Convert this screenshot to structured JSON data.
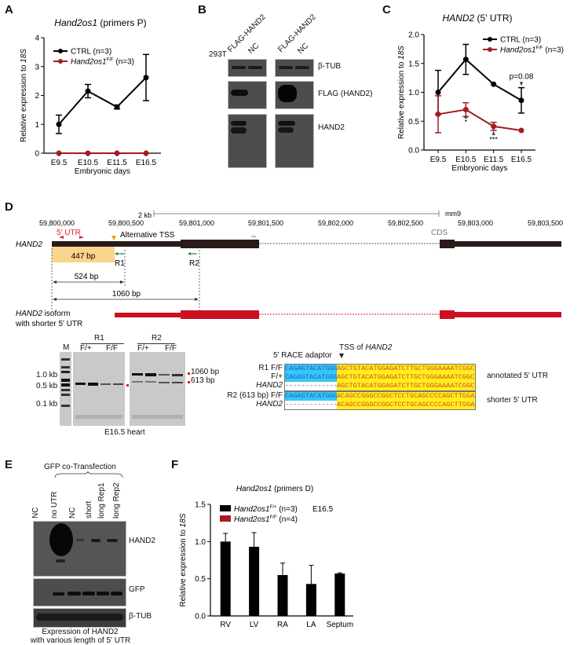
{
  "panels": {
    "A": {
      "label": "A"
    },
    "B": {
      "label": "B"
    },
    "C": {
      "label": "C"
    },
    "D": {
      "label": "D"
    },
    "E": {
      "label": "E"
    },
    "F": {
      "label": "F"
    }
  },
  "chart_data": [
    {
      "id": "A",
      "type": "line",
      "title_italic": "Hand2os1",
      "title_rest": " (primers P)",
      "xlabel": "Embryonic days",
      "ylabel_prefix": "Relative expression to ",
      "ylabel_italic": "18S",
      "categories": [
        "E9.5",
        "E10.5",
        "E11.5",
        "E16.5"
      ],
      "ylim": [
        0,
        4
      ],
      "yticks": [
        0,
        1,
        2,
        3,
        4
      ],
      "legend_position": "top-left",
      "series": [
        {
          "name": "CTRL (n=3)",
          "color": "#000000",
          "values": [
            1.0,
            2.15,
            1.6,
            2.62
          ],
          "err": [
            0.32,
            0.23,
            0.07,
            0.8
          ]
        },
        {
          "name_italic": "Hand2os1",
          "name_sup": "F/F",
          "name": " (n=3)",
          "color": "#a31c22",
          "values": [
            0,
            0,
            0,
            0
          ],
          "err": [
            0,
            0,
            0,
            0
          ]
        }
      ]
    },
    {
      "id": "C",
      "type": "line",
      "title_italic": "HAND2",
      "title_rest": " (5' UTR)",
      "xlabel": "Embryonic days",
      "ylabel_prefix": "Relative expression to ",
      "ylabel_italic": "18S",
      "categories": [
        "E9.5",
        "E10.5",
        "E11.5",
        "E16.5"
      ],
      "ylim": [
        0,
        2.0
      ],
      "yticks": [
        "0.0",
        "0.5",
        "1.0",
        "1.5",
        "2.0"
      ],
      "legend_position": "top-right",
      "series": [
        {
          "name": "CTRL (n=3)",
          "color": "#000000",
          "values": [
            1.0,
            1.57,
            1.14,
            0.86
          ],
          "err": [
            0.38,
            0.26,
            0.0,
            0.22
          ]
        },
        {
          "name_italic": "Hand2os1",
          "name_sup": "F/F",
          "name": " (n=3)",
          "color": "#a31c22",
          "values": [
            0.62,
            0.7,
            0.41,
            0.34
          ],
          "err": [
            0.32,
            0.12,
            0.07,
            0.0
          ]
        }
      ],
      "annotations": [
        {
          "x": "E10.5",
          "text": "*"
        },
        {
          "x": "E11.5",
          "text": "***"
        },
        {
          "x": "E16.5",
          "text": "p=0.08"
        }
      ]
    },
    {
      "id": "F",
      "type": "bar",
      "title_italic": "Hand2os1",
      "title_rest": " (primers D)",
      "xlabel": "",
      "ylabel_prefix": "Relative expression to ",
      "ylabel_italic": "18S",
      "categories": [
        "RV",
        "LV",
        "RA",
        "LA",
        "Septum"
      ],
      "ylim": [
        0,
        1.5
      ],
      "yticks": [
        "0.0",
        "0.5",
        "1.0",
        "1.5"
      ],
      "legend_position": "top",
      "stage_label": "E16.5",
      "series": [
        {
          "name_italic": "Hand2os1",
          "name_sup": "F/+",
          "name": " (n=3)",
          "color": "#000000",
          "values": [
            1.0,
            0.93,
            0.55,
            0.43,
            0.57
          ],
          "err": [
            0.11,
            0.19,
            0.16,
            0.25,
            0.01
          ]
        },
        {
          "name_italic": "Hand2os1",
          "name_sup": "F/F",
          "name": " (n=4)",
          "color": "#a31c22",
          "values": [
            0,
            0,
            0,
            0,
            0
          ],
          "err": [
            0,
            0,
            0,
            0,
            0
          ]
        }
      ]
    }
  ],
  "blotB": {
    "cell_line": "293T",
    "lanes": [
      "FLAG-HAND2",
      "NC",
      "FLAG-HAND2",
      "NC"
    ],
    "rows": [
      "β-TUB",
      "FLAG (HAND2)",
      "HAND2"
    ]
  },
  "geneD": {
    "scale_label": "2 kb",
    "assembly": "mm9",
    "coords": [
      "59,800,000",
      "59,800,500",
      "59,801,000",
      "59,801,500",
      "59,802,000",
      "59,802,500",
      "59,803,000",
      "59,803,500"
    ],
    "utr_label": "5' UTR",
    "alt_tss_label": "Alternative TSS",
    "gene_label": "HAND2",
    "utr_len": "447 bp",
    "primer_r1": "R1",
    "primer_r2": "R2",
    "dist1": "524 bp",
    "dist2": "1060 bp",
    "cds_label": "CDS",
    "isoform_label_italic": "HAND2",
    "isoform_label_rest": " isoform",
    "isoform_label_line2": "with shorter 5' UTR"
  },
  "gelD": {
    "marker": "M",
    "group1": "R1",
    "group2": "R2",
    "genotypes": [
      "F/+",
      "F/F",
      "F/+",
      "F/F"
    ],
    "ladder": [
      "1.0 kb",
      "0.5 kb",
      "0.1 kb"
    ],
    "bands": [
      "1060 bp",
      "613 bp"
    ],
    "caption": "E16.5 heart"
  },
  "raceD": {
    "adaptor_label": "5' RACE adaptor",
    "tss_label_prefix": "TSS of ",
    "tss_label_italic": "HAND2",
    "rows": [
      {
        "group": "R1",
        "geno": "F/F",
        "adaptor": "CAGAGTACATGGGG",
        "seq": "AGCTGTACATGGAGATCTTGCTGGGAAAATCGGC"
      },
      {
        "group": "",
        "geno": "F/+",
        "adaptor": "CAGAGTACATGGGG",
        "seq": "AGCTGTACATGGAGATCTTGCTGGGAAAATCGGC"
      },
      {
        "group": "",
        "geno": "HAND2",
        "adaptor": "--------------",
        "seq": "AGCTGTACATGGAGATCTTGCTGGGAAAATCGGC"
      },
      {
        "group": "R2 (613 bp)",
        "geno": "F/F",
        "adaptor": "CAGAGTACATGGGG",
        "seq": "ACAGCCGGGCCGGCTCCTGCAGCCCCAGCTTGGAC"
      },
      {
        "group": "",
        "geno": "HAND2",
        "adaptor": "--------------",
        "seq": "ACAGCCGGGCCGGCTCCTGCAGCCCCAGCTTGGAC"
      }
    ],
    "annot1": "annotated 5' UTR",
    "annot2": "shorter 5' UTR"
  },
  "blotE": {
    "group_label": "GFP co-Transfection",
    "lanes": [
      "NC",
      "no UTR",
      "NC",
      "short",
      "long Rep1",
      "long Rep2"
    ],
    "rows": [
      "HAND2",
      "GFP",
      "β-TUB"
    ],
    "caption1": "Expression of HAND2",
    "caption2": "with various length of 5' UTR"
  },
  "colors": {
    "ctrl": "#000000",
    "mutant": "#a31c22",
    "utr": "#f9d48a",
    "isoform": "#cc1020",
    "primer": "#1f8a3a",
    "tss": "#f2a000"
  }
}
